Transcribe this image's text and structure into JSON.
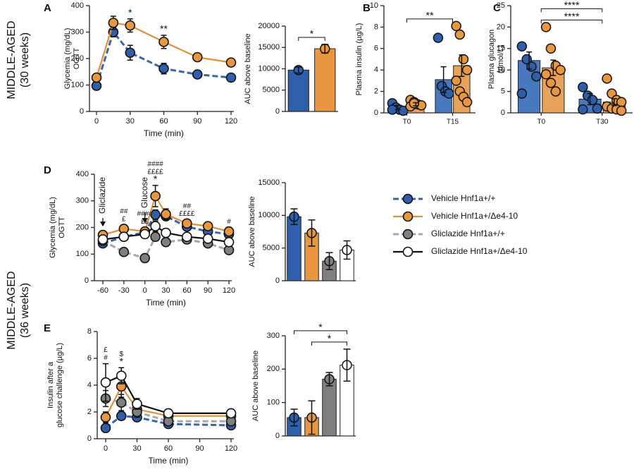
{
  "row_labels": [
    [
      "MIDDLE-AGED",
      "(30 weeks)"
    ],
    [
      "MIDDLE-AGED",
      "(36 weeks)"
    ]
  ],
  "chart_data": [
    {
      "type": "line",
      "panel": "A",
      "ylabel": [
        "Glycemia (mg/dL)",
        "OGTT"
      ],
      "xlabel": "Time (min)",
      "x": [
        0,
        15,
        30,
        60,
        90,
        120
      ],
      "xlim": [
        0,
        120
      ],
      "xticks": [
        0,
        30,
        60,
        90,
        120
      ],
      "ylim": [
        0,
        400
      ],
      "yticks": [
        0,
        100,
        200,
        300,
        400
      ],
      "series": [
        {
          "color": "#3a64ad",
          "marker_color": "#2f5faa",
          "dashed": true,
          "values": [
            97,
            300,
            222,
            162,
            140,
            128
          ],
          "errors": [
            15,
            18,
            28,
            20,
            15,
            10
          ]
        },
        {
          "color": "#e0913a",
          "marker_color": "#e8963f",
          "dashed": false,
          "values": [
            128,
            335,
            325,
            263,
            205,
            185
          ],
          "errors": [
            12,
            25,
            25,
            25,
            15,
            12
          ]
        }
      ],
      "annotations": [
        {
          "text": "*",
          "at": 2
        },
        {
          "text": "**",
          "at": 3
        }
      ]
    },
    {
      "type": "bar",
      "ylabel": "AUC above baseline",
      "categories": [
        null,
        null
      ],
      "values": [
        9700,
        14700
      ],
      "errors": [
        700,
        1000
      ],
      "colors": [
        "#2f5faa",
        "#e8963f"
      ],
      "ylim": [
        0,
        20000
      ],
      "yticks": [
        0,
        5000,
        10000,
        15000,
        20000
      ],
      "brackets": [
        {
          "text": "*",
          "from": 0,
          "to": 1
        }
      ]
    },
    {
      "type": "bar",
      "panel": "B",
      "ylabel": "Plasma insulin (µg/L)",
      "categories": [
        "T0",
        "T15"
      ],
      "ylim": [
        0,
        10
      ],
      "yticks": [
        0,
        2,
        4,
        6,
        8,
        10
      ],
      "series": [
        {
          "color": "#4a78bd",
          "marker_color": "#2f5faa",
          "values": [
            0.5,
            3.1
          ],
          "errors": [
            0.2,
            1.2
          ],
          "points": [
            [
              0.9,
              0.5,
              0.3,
              0.2,
              0.3
            ],
            [
              7.0,
              2.5,
              2.0,
              1.8
            ]
          ]
        },
        {
          "color": "#e9a25a",
          "marker_color": "#e8963f",
          "values": [
            0.8,
            4.4
          ],
          "errors": [
            0.15,
            1.0
          ],
          "points": [
            [
              1.2,
              1.0,
              0.8,
              0.7,
              0.6,
              0.9
            ],
            [
              8.1,
              7.3,
              5.0,
              4.0,
              3.0,
              2.0,
              1.5,
              1.0
            ]
          ]
        }
      ],
      "brackets": [
        {
          "text": "**",
          "from": 0,
          "to": 1
        }
      ]
    },
    {
      "type": "bar",
      "panel": "C",
      "ylabel": [
        "Plasma glucagon",
        "(pmol/L)"
      ],
      "categories": [
        "T0",
        "T30"
      ],
      "ylim": [
        0,
        25
      ],
      "yticks": [
        0,
        5,
        10,
        15,
        20,
        25
      ],
      "series": [
        {
          "color": "#4a78bd",
          "marker_color": "#2f5faa",
          "values": [
            12.2,
            3.2
          ],
          "errors": [
            2.0,
            1.3
          ],
          "points": [
            [
              15.5,
              12.5,
              10.8,
              8.5,
              4.5
            ],
            [
              6.0,
              4.0,
              3.0,
              1.0,
              0.8
            ]
          ]
        },
        {
          "color": "#e9a25a",
          "marker_color": "#e8963f",
          "values": [
            10.5,
            2.5
          ],
          "errors": [
            1.8,
            0.8
          ],
          "points": [
            [
              20,
              15,
              11,
              10,
              9,
              7,
              5
            ],
            [
              8,
              4.5,
              3,
              2.5,
              1.5,
              1,
              0.8,
              0.5
            ]
          ]
        }
      ],
      "brackets": [
        {
          "text": "****",
          "from": 0,
          "to": 1
        },
        {
          "text": "****",
          "from": 0,
          "to": 1
        }
      ]
    },
    {
      "type": "line",
      "panel": "D",
      "ylabel": [
        "Glycemia (mg/dL)",
        "OGTT"
      ],
      "xlabel": "Time (min)",
      "x": [
        -60,
        -30,
        0,
        15,
        30,
        60,
        90,
        120
      ],
      "xlim": [
        -60,
        120
      ],
      "xticks": [
        -60,
        -30,
        0,
        30,
        60,
        90,
        120
      ],
      "ylim": [
        0,
        400
      ],
      "yticks": [
        0,
        100,
        200,
        300,
        400
      ],
      "legend": "right",
      "series": [
        {
          "name": "Vehicle Hnf1a+/+",
          "color": "#3a64ad",
          "marker_color": "#2f5faa",
          "dashed": true,
          "values": [
            140,
            165,
            182,
            248,
            242,
            203,
            185,
            175
          ],
          "errors": [
            10,
            12,
            15,
            18,
            15,
            15,
            12,
            15
          ]
        },
        {
          "name": "Vehicle Hnf1a+/Δe4-10",
          "color": "#e0913a",
          "marker_color": "#e8963f",
          "dashed": false,
          "values": [
            172,
            195,
            185,
            318,
            250,
            215,
            205,
            185
          ],
          "errors": [
            15,
            15,
            15,
            40,
            20,
            15,
            15,
            15
          ]
        },
        {
          "name": "Gliclazide Hnf1a+/+",
          "color": "#a8a8a8",
          "marker_color": "#7f7f7f",
          "dashed": true,
          "values": [
            150,
            108,
            85,
            165,
            145,
            155,
            140,
            115
          ],
          "errors": [
            10,
            10,
            15,
            15,
            15,
            15,
            12,
            12
          ]
        },
        {
          "name": "Gliclazide Hnf1a+/Δe4-10",
          "color": "#111111",
          "marker_color": "#ffffff",
          "dashed": false,
          "values": [
            155,
            165,
            175,
            205,
            180,
            165,
            158,
            145
          ],
          "errors": [
            12,
            12,
            15,
            20,
            15,
            15,
            12,
            15
          ]
        }
      ],
      "events": [
        {
          "text": "Gliclazide",
          "at": 0
        },
        {
          "text": "Glucose",
          "at": 2
        }
      ],
      "annotations": [
        {
          "text": "##",
          "at": 1
        },
        {
          "text": "£",
          "at": 1
        },
        {
          "text": "####",
          "at": 2
        },
        {
          "text": "££",
          "at": 2
        },
        {
          "text": "####",
          "at": 3
        },
        {
          "text": "££££",
          "at": 3
        },
        {
          "text": "*",
          "at": 3
        },
        {
          "text": "##",
          "at": 5
        },
        {
          "text": "££££",
          "at": 5
        },
        {
          "text": "#",
          "at": 7
        }
      ]
    },
    {
      "type": "bar",
      "ylabel": "AUC above baseline",
      "categories": [
        null,
        null,
        null,
        null
      ],
      "values": [
        9800,
        7300,
        3000,
        4700
      ],
      "errors": [
        1200,
        2000,
        1300,
        1400
      ],
      "colors": [
        "#2f5faa",
        "#e8963f",
        "#7f7f7f",
        "#ffffff"
      ],
      "ylim": [
        0,
        15000
      ],
      "yticks": [
        0,
        5000,
        10000,
        15000
      ]
    },
    {
      "type": "line",
      "panel": "E",
      "ylabel": [
        "Insulin after a",
        "glucose challenge (µg/L)"
      ],
      "xlabel": "Time (min)",
      "x": [
        0,
        15,
        30,
        60,
        120
      ],
      "xlim": [
        0,
        120
      ],
      "xticks": [
        0,
        30,
        60,
        90,
        120
      ],
      "ylim": [
        0,
        8
      ],
      "yticks": [
        0,
        2,
        4,
        6,
        8
      ],
      "series": [
        {
          "color": "#3a64ad",
          "marker_color": "#2f5faa",
          "dashed": true,
          "values": [
            0.8,
            1.7,
            1.6,
            1.1,
            1.0
          ],
          "errors": [
            0.2,
            0.3,
            0.3,
            0.2,
            0.2
          ]
        },
        {
          "color": "#e0913a",
          "marker_color": "#e8963f",
          "dashed": false,
          "values": [
            1.6,
            3.9,
            2.2,
            1.7,
            1.7
          ],
          "errors": [
            0.4,
            0.8,
            0.5,
            0.3,
            0.3
          ]
        },
        {
          "color": "#a8a8a8",
          "marker_color": "#7f7f7f",
          "dashed": true,
          "values": [
            3.0,
            2.7,
            2.0,
            1.3,
            1.3
          ],
          "errors": [
            0.6,
            0.6,
            0.4,
            0.3,
            0.3
          ]
        },
        {
          "color": "#111111",
          "marker_color": "#ffffff",
          "dashed": false,
          "values": [
            4.2,
            4.7,
            2.6,
            1.9,
            1.9
          ],
          "errors": [
            1.4,
            0.6,
            0.4,
            0.3,
            0.3
          ]
        }
      ],
      "annotations": [
        {
          "text": "£",
          "at": 0
        },
        {
          "text": "#",
          "at": 0
        },
        {
          "text": "$",
          "at": 1
        },
        {
          "text": "*",
          "at": 1
        }
      ]
    },
    {
      "type": "bar",
      "ylabel": "AUC above baseline",
      "categories": [
        null,
        null,
        null,
        null
      ],
      "values": [
        55,
        55,
        170,
        212
      ],
      "errors": [
        25,
        50,
        20,
        48
      ],
      "colors": [
        "#2f5faa",
        "#e8963f",
        "#7f7f7f",
        "#ffffff"
      ],
      "ylim": [
        0,
        300
      ],
      "yticks": [
        0,
        100,
        200,
        300
      ],
      "brackets": [
        {
          "text": "*",
          "from": 0,
          "to": 3
        },
        {
          "text": "*",
          "from": 1,
          "to": 3
        }
      ]
    }
  ]
}
